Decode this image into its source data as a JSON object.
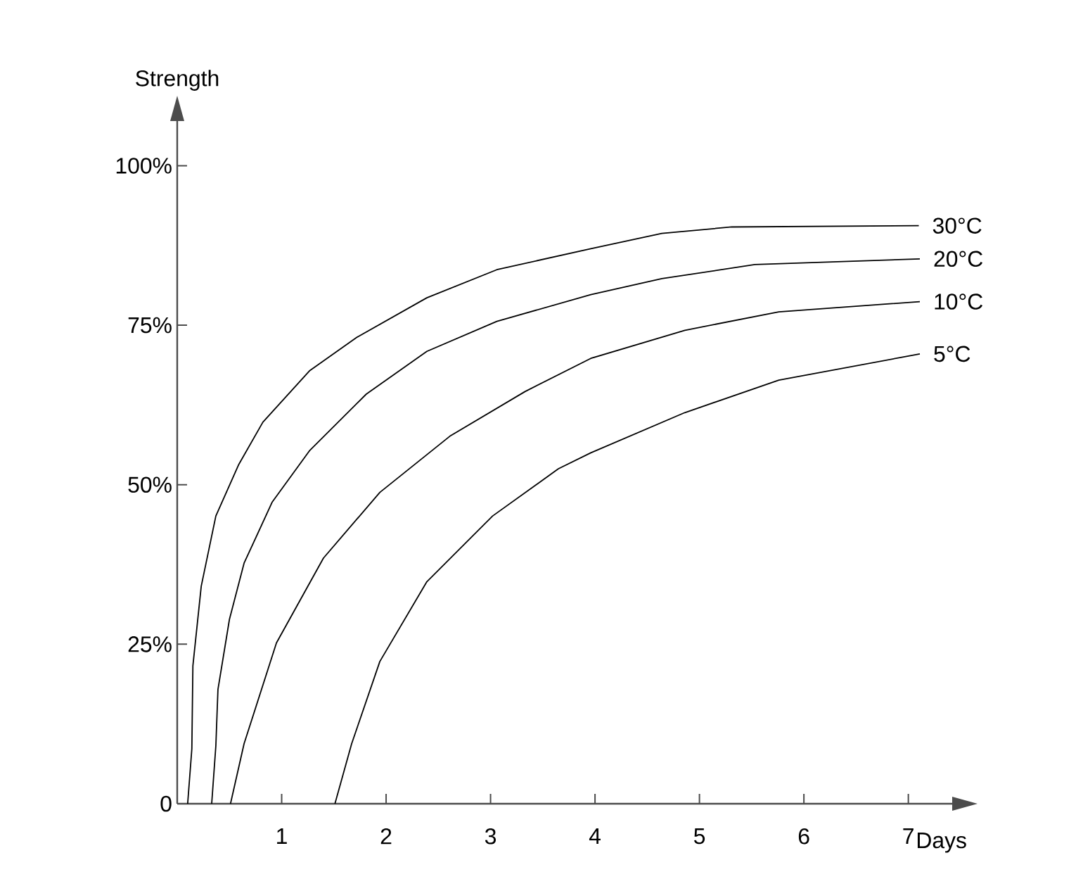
{
  "chart_data": {
    "type": "line",
    "xlabel": "Days",
    "ylabel": "Strength",
    "xlim": [
      0,
      7.42
    ],
    "ylim": [
      0,
      107
    ],
    "xticks": [
      1,
      2,
      3,
      4,
      5,
      6,
      7
    ],
    "yticks": [
      {
        "value": 0,
        "label": "0"
      },
      {
        "value": 25,
        "label": "25%"
      },
      {
        "value": 50,
        "label": "50%"
      },
      {
        "value": 75,
        "label": "75%"
      },
      {
        "value": 100,
        "label": "100%"
      }
    ],
    "grid": false,
    "legend": false,
    "marker": "none",
    "line_style": "solid",
    "series": [
      {
        "name": "30°C",
        "color": "#000000",
        "x": [
          0.1,
          0.14,
          0.15,
          0.23,
          0.37,
          0.59,
          0.82,
          1.27,
          1.72,
          2.39,
          3.06,
          3.96,
          4.64,
          5.31,
          7.1
        ],
        "values": [
          0,
          8.6,
          21.6,
          34.1,
          45.1,
          53.2,
          59.8,
          67.9,
          73.1,
          79.3,
          83.7,
          87.0,
          89.4,
          90.4,
          90.6
        ]
      },
      {
        "name": "20°C",
        "color": "#000000",
        "x": [
          0.33,
          0.37,
          0.39,
          0.5,
          0.64,
          0.91,
          1.27,
          1.81,
          2.39,
          3.06,
          3.96,
          4.64,
          5.53,
          7.11
        ],
        "values": [
          0,
          9.1,
          17.9,
          28.9,
          37.7,
          47.3,
          55.4,
          64.2,
          70.9,
          75.6,
          79.8,
          82.3,
          84.5,
          85.4
        ]
      },
      {
        "name": "10°C",
        "color": "#000000",
        "x": [
          0.51,
          0.64,
          0.95,
          1.4,
          1.94,
          2.61,
          3.33,
          3.96,
          4.86,
          5.76,
          7.11
        ],
        "values": [
          0,
          9.4,
          25.2,
          38.5,
          48.8,
          57.6,
          64.6,
          69.8,
          74.2,
          77.1,
          78.7
        ]
      },
      {
        "name": "5°C",
        "color": "#000000",
        "x": [
          1.51,
          1.67,
          1.94,
          2.39,
          3.02,
          3.65,
          3.96,
          4.86,
          5.76,
          7.11
        ],
        "values": [
          0,
          9.4,
          22.3,
          34.8,
          45.1,
          52.5,
          55.0,
          61.3,
          66.4,
          70.5
        ]
      }
    ]
  }
}
